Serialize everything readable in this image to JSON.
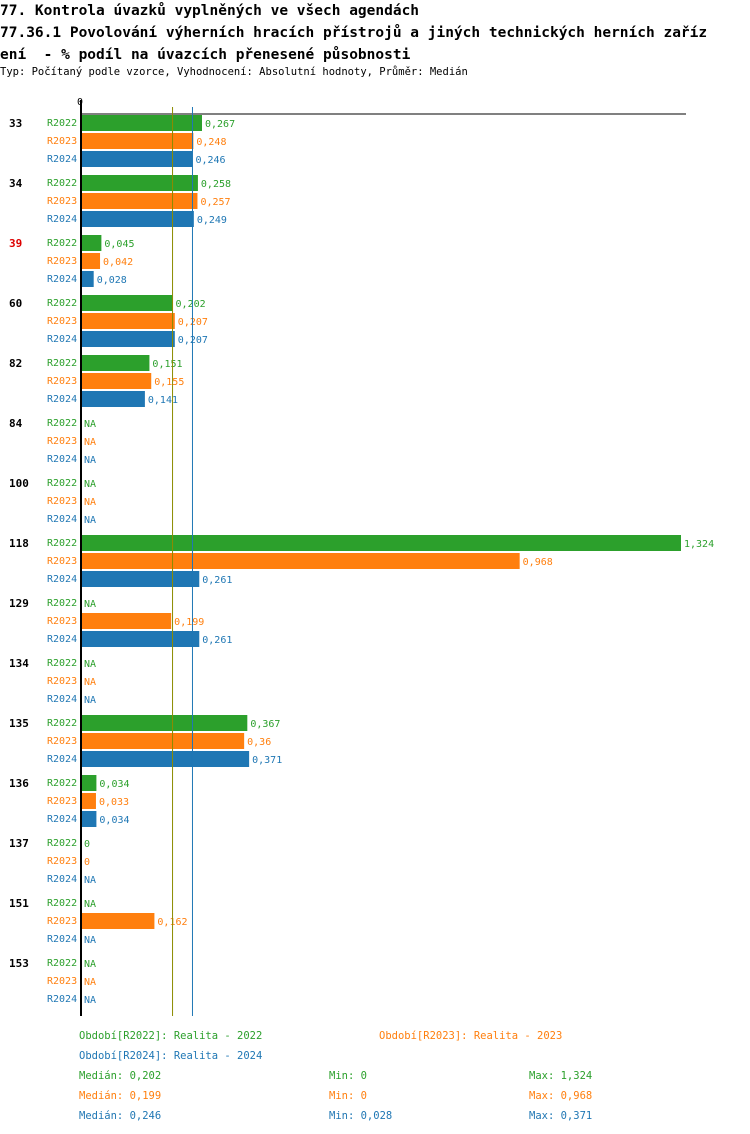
{
  "header": {
    "title_line1": "77. Kontrola úvazků vyplněných ve všech agendách",
    "title_line2": "77.36.1 Povolování výherních hracích přístrojů a jiných technických herních zaříz",
    "title_line3": "ení  - % podíl na úvazcích přenesené působnosti",
    "subtitle": "Typ: Počítaný podle vzorce, Vyhodnocení: Absolutní hodnoty, Průměr: Medián"
  },
  "colors": {
    "R2022": "#2ca02c",
    "R2023": "#ff7f0e",
    "R2024": "#1f77b4",
    "highlight": "#dd0000",
    "median_2022": "#8b8b00",
    "median_2024": "#1f77b4"
  },
  "chart_data": {
    "type": "bar",
    "orientation": "horizontal",
    "axis_zero_label": "0",
    "xlim": [
      0,
      1.324
    ],
    "series_names": [
      "R2022",
      "R2023",
      "R2024"
    ],
    "categories": [
      {
        "label": "33",
        "highlight": false,
        "values": [
          0.267,
          0.248,
          0.246
        ],
        "labels": [
          "0,267",
          "0,248",
          "0,246"
        ]
      },
      {
        "label": "34",
        "highlight": false,
        "values": [
          0.258,
          0.257,
          0.249
        ],
        "labels": [
          "0,258",
          "0,257",
          "0,249"
        ]
      },
      {
        "label": "39",
        "highlight": true,
        "values": [
          0.045,
          0.042,
          0.028
        ],
        "labels": [
          "0,045",
          "0,042",
          "0,028"
        ]
      },
      {
        "label": "60",
        "highlight": false,
        "values": [
          0.202,
          0.207,
          0.207
        ],
        "labels": [
          "0,202",
          "0,207",
          "0,207"
        ]
      },
      {
        "label": "82",
        "highlight": false,
        "values": [
          0.151,
          0.155,
          0.141
        ],
        "labels": [
          "0,151",
          "0,155",
          "0,141"
        ]
      },
      {
        "label": "84",
        "highlight": false,
        "values": [
          null,
          null,
          null
        ],
        "labels": [
          "NA",
          "NA",
          "NA"
        ]
      },
      {
        "label": "100",
        "highlight": false,
        "values": [
          null,
          null,
          null
        ],
        "labels": [
          "NA",
          "NA",
          "NA"
        ]
      },
      {
        "label": "118",
        "highlight": false,
        "values": [
          1.324,
          0.968,
          0.261
        ],
        "labels": [
          "1,324",
          "0,968",
          "0,261"
        ]
      },
      {
        "label": "129",
        "highlight": false,
        "values": [
          null,
          0.199,
          0.261
        ],
        "labels": [
          "NA",
          "0,199",
          "0,261"
        ]
      },
      {
        "label": "134",
        "highlight": false,
        "values": [
          null,
          null,
          null
        ],
        "labels": [
          "NA",
          "NA",
          "NA"
        ]
      },
      {
        "label": "135",
        "highlight": false,
        "values": [
          0.367,
          0.36,
          0.371
        ],
        "labels": [
          "0,367",
          "0,36",
          "0,371"
        ]
      },
      {
        "label": "136",
        "highlight": false,
        "values": [
          0.034,
          0.033,
          0.034
        ],
        "labels": [
          "0,034",
          "0,033",
          "0,034"
        ]
      },
      {
        "label": "137",
        "highlight": false,
        "values": [
          0,
          0,
          null
        ],
        "labels": [
          "0",
          "0",
          "NA"
        ]
      },
      {
        "label": "151",
        "highlight": false,
        "values": [
          null,
          0.162,
          null
        ],
        "labels": [
          "NA",
          "0,162",
          "NA"
        ]
      },
      {
        "label": "153",
        "highlight": false,
        "values": [
          null,
          null,
          null
        ],
        "labels": [
          "NA",
          "NA",
          "NA"
        ]
      }
    ],
    "median_lines": [
      {
        "series": "R2022",
        "value": 0.202
      },
      {
        "series": "R2024",
        "value": 0.246
      }
    ]
  },
  "legend": {
    "r2022": "Období[R2022]: Realita - 2022",
    "r2023": "Období[R2023]: Realita - 2023",
    "r2024": "Období[R2024]: Realita - 2024",
    "stats": [
      {
        "series": "R2022",
        "median": "Medián: 0,202",
        "min": "Min: 0",
        "max": "Max: 1,324"
      },
      {
        "series": "R2023",
        "median": "Medián: 0,199",
        "min": "Min: 0",
        "max": "Max: 0,968"
      },
      {
        "series": "R2024",
        "median": "Medián: 0,246",
        "min": "Min: 0,028",
        "max": "Max: 0,371"
      }
    ]
  }
}
